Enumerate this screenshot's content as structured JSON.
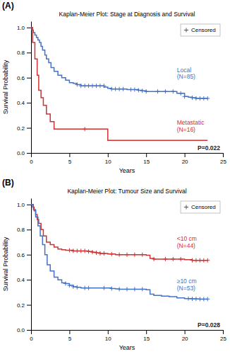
{
  "chart_data": [
    {
      "type": "step",
      "title": "Kaplan-Meier Plot: Stage at Diagnosis and Survival",
      "x_label": "Years",
      "y_label": "Survival Probability",
      "xlim": [
        0,
        25
      ],
      "ylim": [
        0.0,
        1.05
      ],
      "xticks": [
        0,
        5,
        10,
        15,
        20,
        25
      ],
      "yticks": [
        {
          "value": 0.0,
          "label": "0.0"
        },
        0.2,
        0.4,
        0.6,
        0.8,
        {
          "value": 1.0,
          "label": "1.0"
        }
      ],
      "grid": false,
      "legend": "upper right",
      "legend_entries": [
        "Censored"
      ],
      "annotations": [
        "(A)",
        "P=0.022"
      ],
      "series": [
        {
          "name": "Local\n(N=85)",
          "color": "#4472C4",
          "x": [
            0,
            0.1,
            0.3,
            0.5,
            0.7,
            0.9,
            1.1,
            1.3,
            1.5,
            1.8,
            2.0,
            2.3,
            2.6,
            3.0,
            3.5,
            4.0,
            4.5,
            5.0,
            5.5,
            6.0,
            6.5,
            7.0,
            7.5,
            8.0,
            8.5,
            9.0,
            9.5,
            10.0,
            10.5,
            11.0,
            11.5,
            12.0,
            12.5,
            13.0,
            13.5,
            14.0,
            14.5,
            15.0,
            16.0,
            17.0,
            18.0,
            19.0,
            20.0,
            20.5,
            21.0,
            21.5,
            22.0,
            22.5,
            23.0
          ],
          "values": [
            1.0,
            0.98,
            0.96,
            0.94,
            0.92,
            0.9,
            0.88,
            0.85,
            0.82,
            0.78,
            0.75,
            0.72,
            0.68,
            0.65,
            0.62,
            0.6,
            0.58,
            0.56,
            0.555,
            0.545,
            0.535,
            0.535,
            0.535,
            0.535,
            0.535,
            0.535,
            0.525,
            0.515,
            0.51,
            0.51,
            0.51,
            0.51,
            0.505,
            0.505,
            0.505,
            0.5,
            0.495,
            0.49,
            0.49,
            0.49,
            0.49,
            0.475,
            0.45,
            0.445,
            0.44,
            0.435,
            0.435,
            0.435,
            0.435
          ],
          "censor_x": [
            6.0,
            6.5,
            7.0,
            7.5,
            8.0,
            8.5,
            9.0,
            9.5,
            10.5,
            11.0,
            11.5,
            12.0,
            13.0,
            13.5,
            14.0,
            14.5,
            15.0,
            16.5,
            17.5,
            18.5,
            19.5,
            20.0,
            21.0,
            21.5,
            22.0,
            22.5,
            23.0
          ],
          "censor_values": [
            0.545,
            0.535,
            0.535,
            0.535,
            0.535,
            0.535,
            0.535,
            0.535,
            0.51,
            0.51,
            0.51,
            0.51,
            0.505,
            0.505,
            0.5,
            0.495,
            0.49,
            0.49,
            0.49,
            0.49,
            0.475,
            0.45,
            0.44,
            0.435,
            0.435,
            0.435,
            0.435
          ]
        },
        {
          "name": "Metastatic\n(N=16)",
          "color": "#CC3333",
          "x": [
            0,
            0.2,
            0.5,
            0.8,
            1.0,
            1.3,
            1.6,
            2.0,
            2.5,
            3.0,
            7.0,
            10.0,
            10.5,
            23.0
          ],
          "values": [
            1.0,
            0.88,
            0.75,
            0.62,
            0.5,
            0.44,
            0.38,
            0.31,
            0.25,
            0.19,
            0.19,
            0.1,
            0.1,
            0.1
          ],
          "censor_x": [
            7.0
          ],
          "censor_values": [
            0.19
          ]
        }
      ]
    },
    {
      "type": "step",
      "title": "Kaplan-Meier Plot: Tumour Size and Survival",
      "x_label": "Years",
      "y_label": "Survival Probability",
      "xlim": [
        0,
        25
      ],
      "ylim": [
        0.0,
        1.05
      ],
      "xticks": [
        0,
        5,
        10,
        15,
        20,
        25
      ],
      "yticks": [
        {
          "value": 0.0,
          "label": "0.0"
        },
        0.2,
        0.4,
        0.6,
        0.8,
        {
          "value": 1.0,
          "label": "1.0"
        }
      ],
      "grid": false,
      "legend": "upper right",
      "legend_entries": [
        "Censored"
      ],
      "annotations": [
        "(B)",
        "P=0.028"
      ],
      "series": [
        {
          "name": "<10 cm\n(N=44)",
          "color": "#CC3333",
          "x": [
            0,
            0.2,
            0.4,
            0.6,
            0.8,
            1.0,
            1.3,
            1.6,
            2.0,
            2.5,
            3.0,
            3.5,
            4.0,
            4.5,
            5.0,
            5.5,
            6.0,
            6.5,
            7.0,
            7.5,
            8.0,
            8.5,
            9.0,
            9.5,
            10.0,
            10.5,
            11.0,
            12.0,
            13.0,
            14.0,
            15.0,
            15.5,
            16.0,
            17.0,
            18.0,
            19.0,
            20.0,
            21.0,
            21.5,
            22.0,
            22.5,
            23.0
          ],
          "values": [
            1.0,
            0.98,
            0.95,
            0.92,
            0.88,
            0.85,
            0.8,
            0.75,
            0.7,
            0.68,
            0.66,
            0.645,
            0.64,
            0.635,
            0.635,
            0.63,
            0.63,
            0.63,
            0.63,
            0.625,
            0.62,
            0.615,
            0.61,
            0.61,
            0.605,
            0.605,
            0.6,
            0.6,
            0.6,
            0.6,
            0.595,
            0.57,
            0.565,
            0.565,
            0.565,
            0.565,
            0.56,
            0.555,
            0.555,
            0.555,
            0.555,
            0.555
          ],
          "censor_x": [
            5.0,
            5.5,
            6.0,
            6.5,
            7.0,
            7.5,
            8.0,
            8.5,
            9.0,
            9.5,
            10.5,
            11.5,
            12.5,
            13.5,
            14.5,
            16.0,
            17.5,
            18.5,
            19.5,
            21.0,
            21.5,
            22.0,
            22.5,
            23.0
          ],
          "censor_values": [
            0.635,
            0.63,
            0.63,
            0.63,
            0.63,
            0.625,
            0.62,
            0.615,
            0.61,
            0.61,
            0.605,
            0.6,
            0.6,
            0.6,
            0.6,
            0.565,
            0.565,
            0.565,
            0.565,
            0.555,
            0.555,
            0.555,
            0.555,
            0.555
          ]
        },
        {
          "name": "≥10 cm\n(N=53)",
          "color": "#4472C4",
          "x": [
            0,
            0.3,
            0.6,
            0.9,
            1.2,
            1.5,
            1.8,
            2.1,
            2.5,
            3.0,
            3.5,
            4.0,
            4.5,
            5.0,
            5.5,
            6.0,
            6.5,
            7.0,
            7.5,
            8.0,
            9.0,
            10.0,
            10.5,
            11.0,
            11.5,
            12.0,
            13.0,
            14.0,
            15.0,
            15.5,
            16.0,
            17.0,
            18.0,
            19.0,
            20.0,
            21.0,
            21.5,
            22.0,
            22.5,
            23.0
          ],
          "values": [
            1.0,
            0.96,
            0.9,
            0.83,
            0.75,
            0.68,
            0.6,
            0.52,
            0.47,
            0.42,
            0.4,
            0.375,
            0.37,
            0.355,
            0.345,
            0.34,
            0.335,
            0.335,
            0.335,
            0.335,
            0.335,
            0.335,
            0.33,
            0.328,
            0.325,
            0.325,
            0.325,
            0.325,
            0.32,
            0.285,
            0.275,
            0.27,
            0.265,
            0.255,
            0.25,
            0.248,
            0.247,
            0.246,
            0.246,
            0.246
          ],
          "censor_x": [
            4.5,
            5.0,
            5.5,
            6.0,
            7.0,
            7.5,
            9.5,
            10.5,
            11.5,
            12.5,
            13.5,
            14.5,
            20.5,
            21.0,
            21.5,
            22.0,
            22.5,
            23.0
          ],
          "censor_values": [
            0.37,
            0.355,
            0.345,
            0.34,
            0.335,
            0.335,
            0.335,
            0.33,
            0.325,
            0.325,
            0.325,
            0.325,
            0.25,
            0.248,
            0.247,
            0.246,
            0.246,
            0.246
          ]
        }
      ]
    }
  ]
}
